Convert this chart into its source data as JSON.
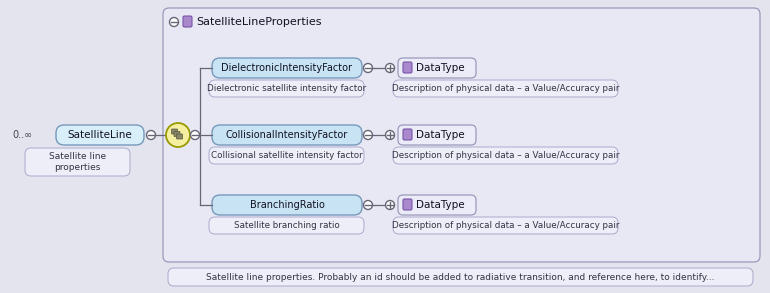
{
  "fig_bg": "#e4e4ee",
  "title": "SatelliteLineProperties",
  "satellite_line_label": "SatelliteLine",
  "satellite_line_sublabel": "Satellite line\nproperties",
  "multiplicity": "0..∞",
  "fields": [
    {
      "name": "DielectronicIntensityFactor",
      "tooltip": "Dielectronic satellite intensity factor",
      "datatype": "DataType",
      "datatype_tooltip": "Description of physical data – a Value/Accuracy pair"
    },
    {
      "name": "CollisionalIntensityFactor",
      "tooltip": "Collisional satellite intensity factor",
      "datatype": "DataType",
      "datatype_tooltip": "Description of physical data – a Value/Accuracy pair"
    },
    {
      "name": "BranchingRatio",
      "tooltip": "Satellite branching ratio",
      "datatype": "DataType",
      "datatype_tooltip": "Description of physical data – a Value/Accuracy pair"
    }
  ],
  "bottom_note": "Satellite line properties. Probably an id should be added to radiative transition, and reference here, to identify...",
  "main_box_fill": "#e8e8f4",
  "main_box_border": "#9999bb",
  "field_fill": "#c8e4f4",
  "field_border": "#7799bb",
  "datatype_fill": "#ececf8",
  "datatype_border": "#9999bb",
  "tooltip_fill": "#eeeef8",
  "tooltip_border": "#aaaacc",
  "connector_color": "#666677",
  "yellow_fill": "#f5f0a0",
  "yellow_border": "#999900",
  "purple_fill": "#aa88cc",
  "purple_border": "#7755aa",
  "sl_box_fill": "#d8eef8",
  "sl_box_border": "#7799bb"
}
